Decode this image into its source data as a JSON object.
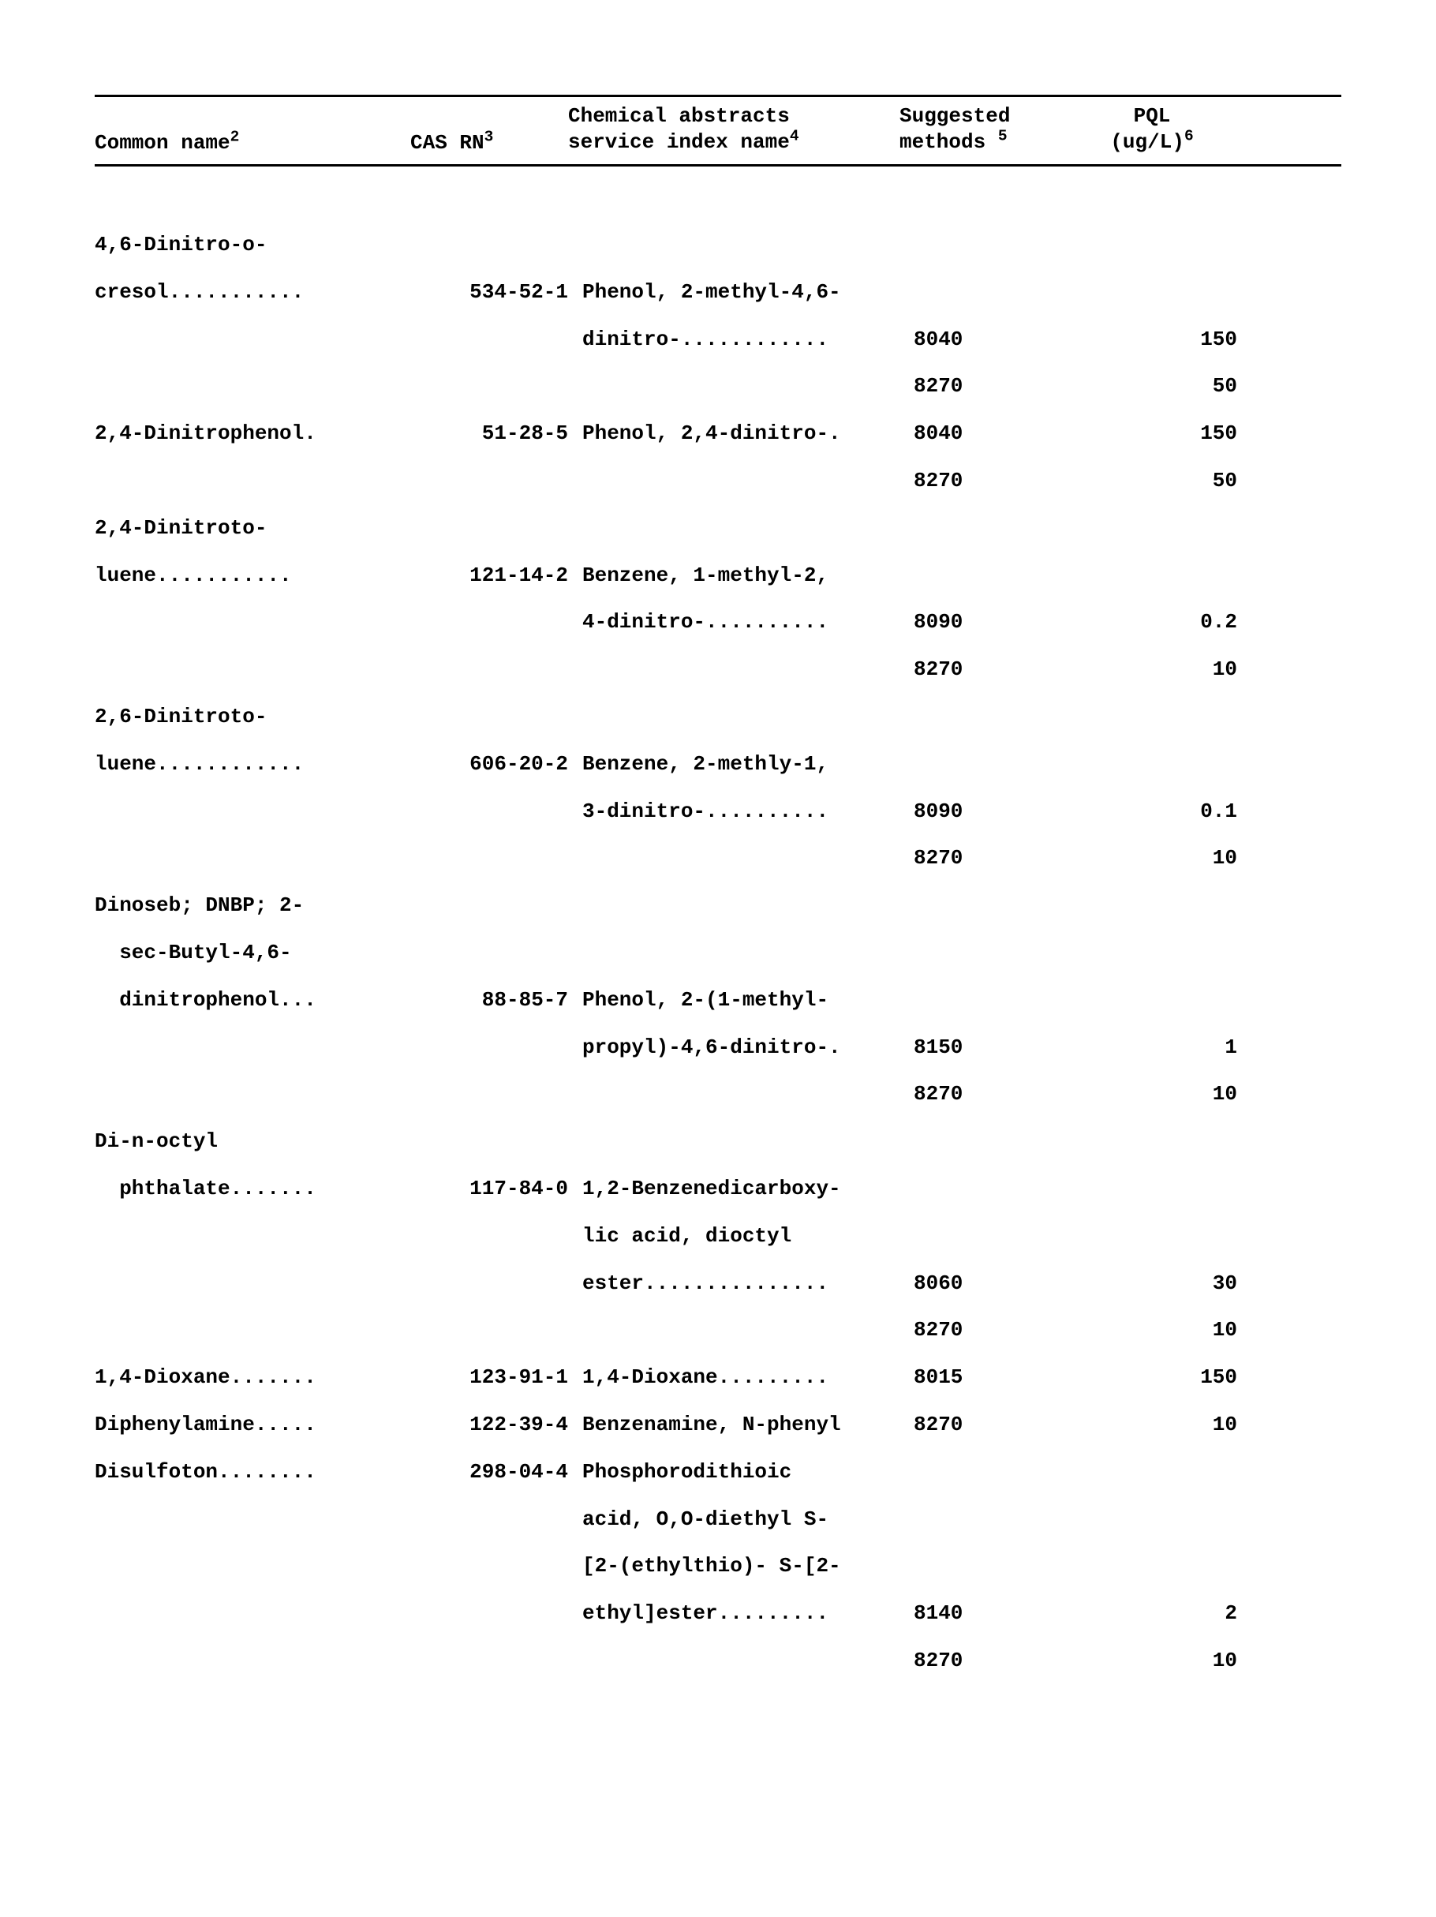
{
  "header": {
    "common_name": "Common name",
    "common_name_sup": "2",
    "cas_rn": "CAS RN",
    "cas_rn_sup": "3",
    "chem_abs_l1": "Chemical abstracts",
    "chem_abs_l2": "service index name",
    "chem_abs_sup": "4",
    "suggested_l1": "Suggested",
    "suggested_l2": "methods",
    "suggested_sup": "5",
    "pql_l1": "PQL",
    "pql_l2": "(ug/L)",
    "pql_sup": "6"
  },
  "rows": [
    {
      "name": "4,6-Dinitro-o-",
      "cas": "",
      "chem": "",
      "method": "",
      "pql": ""
    },
    {
      "name": "cresol...........",
      "cas": "534-52-1",
      "chem": "Phenol, 2-methyl-4,6-",
      "method": "",
      "pql": ""
    },
    {
      "name": "",
      "cas": "",
      "chem": "dinitro-............",
      "method": "8040",
      "pql": "150"
    },
    {
      "name": "",
      "cas": "",
      "chem": "",
      "method": "8270",
      "pql": "50"
    },
    {
      "name": "2,4-Dinitrophenol.",
      "cas": "51-28-5",
      "chem": "Phenol, 2,4-dinitro-.",
      "method": "8040",
      "pql": "150"
    },
    {
      "name": "",
      "cas": "",
      "chem": "",
      "method": "8270",
      "pql": "50"
    },
    {
      "name": "2,4-Dinitroto-",
      "cas": "",
      "chem": "",
      "method": "",
      "pql": ""
    },
    {
      "name": "luene...........",
      "cas": "121-14-2",
      "chem": "Benzene, 1-methyl-2,",
      "method": "",
      "pql": ""
    },
    {
      "name": "",
      "cas": "",
      "chem": "4-dinitro-..........",
      "method": "8090",
      "pql": "0.2"
    },
    {
      "name": "",
      "cas": "",
      "chem": "",
      "method": "8270",
      "pql": "10"
    },
    {
      "name": "2,6-Dinitroto-",
      "cas": "",
      "chem": "",
      "method": "",
      "pql": ""
    },
    {
      "name": "luene............",
      "cas": "606-20-2",
      "chem": "Benzene, 2-methly-1,",
      "method": "",
      "pql": ""
    },
    {
      "name": "",
      "cas": "",
      "chem": "3-dinitro-..........",
      "method": "8090",
      "pql": "0.1"
    },
    {
      "name": "",
      "cas": "",
      "chem": "",
      "method": "8270",
      "pql": "10"
    },
    {
      "name": "Dinoseb; DNBP; 2-",
      "cas": "",
      "chem": "",
      "method": "",
      "pql": ""
    },
    {
      "name": "  sec-Butyl-4,6-",
      "cas": "",
      "chem": "",
      "method": "",
      "pql": ""
    },
    {
      "name": "  dinitrophenol...",
      "cas": "88-85-7",
      "chem": "Phenol, 2-(1-methyl-",
      "method": "",
      "pql": ""
    },
    {
      "name": "",
      "cas": "",
      "chem": "propyl)-4,6-dinitro-.",
      "method": "8150",
      "pql": "1"
    },
    {
      "name": "",
      "cas": "",
      "chem": "",
      "method": "8270",
      "pql": "10"
    },
    {
      "name": "Di-n-octyl",
      "cas": "",
      "chem": "",
      "method": "",
      "pql": ""
    },
    {
      "name": "  phthalate.......",
      "cas": "117-84-0",
      "chem": "1,2-Benzenedicarboxy-",
      "method": "",
      "pql": ""
    },
    {
      "name": "",
      "cas": "",
      "chem": "lic acid, dioctyl",
      "method": "",
      "pql": ""
    },
    {
      "name": "",
      "cas": "",
      "chem": "ester...............",
      "method": "8060",
      "pql": "30"
    },
    {
      "name": "",
      "cas": "",
      "chem": "",
      "method": "8270",
      "pql": "10"
    },
    {
      "name": "1,4-Dioxane.......",
      "cas": "123-91-1",
      "chem": "1,4-Dioxane.........",
      "method": "8015",
      "pql": "150"
    },
    {
      "name": "Diphenylamine.....",
      "cas": "122-39-4",
      "chem": "Benzenamine, N-phenyl",
      "method": "8270",
      "pql": "10"
    },
    {
      "name": "Disulfoton........",
      "cas": "298-04-4",
      "chem": "Phosphorodithioic",
      "method": "",
      "pql": ""
    },
    {
      "name": "",
      "cas": "",
      "chem": "acid, O,O-diethyl S-",
      "method": "",
      "pql": ""
    },
    {
      "name": "",
      "cas": "",
      "chem": "[2-(ethylthio)- S-[2-",
      "method": "",
      "pql": ""
    },
    {
      "name": "",
      "cas": "",
      "chem": "ethyl]ester.........",
      "method": "8140",
      "pql": "2"
    },
    {
      "name": "",
      "cas": "",
      "chem": "",
      "method": "8270",
      "pql": "10"
    }
  ]
}
